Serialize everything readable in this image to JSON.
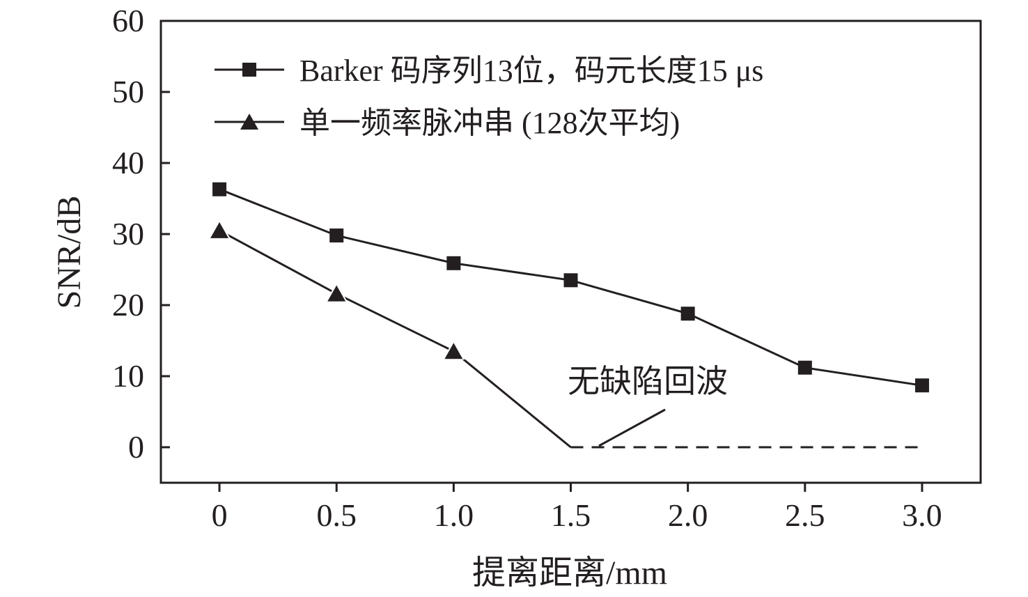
{
  "chart_data": {
    "type": "line",
    "title": "",
    "xlabel": "提离距离/mm",
    "ylabel": "SNR/dB",
    "categories": [
      "0",
      "0.5",
      "1.0",
      "1.5",
      "2.0",
      "2.5",
      "3.0"
    ],
    "x": [
      0,
      0.5,
      1.0,
      1.5,
      2.0,
      2.5,
      3.0
    ],
    "xlim": [
      -0.25,
      3.25
    ],
    "ylim": [
      -5,
      60
    ],
    "yticks": [
      "0",
      "10",
      "20",
      "30",
      "40",
      "50",
      "60"
    ],
    "grid": false,
    "legend_position": "top-left",
    "series": [
      {
        "name": "Barker 码序列13位，码元长度15 μs",
        "marker": "square",
        "x": [
          0,
          0.5,
          1.0,
          1.5,
          2.0,
          2.5,
          3.0
        ],
        "values": [
          36.3,
          29.8,
          25.9,
          23.5,
          18.8,
          11.2,
          8.7
        ]
      },
      {
        "name": "单一频率脉冲串 (128次平均)",
        "marker": "triangle",
        "x": [
          0,
          0.5,
          1.0,
          1.5
        ],
        "values": [
          30.5,
          21.6,
          13.5,
          0
        ]
      }
    ],
    "no_echo_line": {
      "x": [
        1.5,
        3.0
      ],
      "value": 0,
      "style": "dashed"
    },
    "annotations": [
      {
        "text": "无缺陷回波"
      }
    ],
    "colors": {
      "line": "#231f20",
      "background": "#ffffff"
    }
  }
}
